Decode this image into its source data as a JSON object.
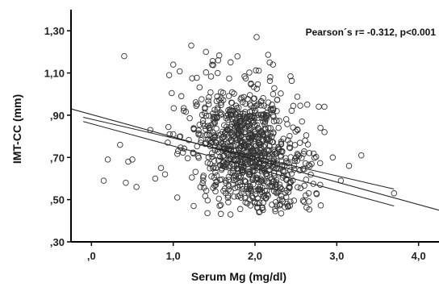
{
  "chart_data": {
    "type": "scatter",
    "title": "",
    "xlabel": "Serum Mg (mg/dl)",
    "ylabel": "IMT-CC (mm)",
    "annotation": "Pearson´s r= -0.312, p<0.001",
    "xlim": [
      -0.25,
      4.25
    ],
    "ylim": [
      0.3,
      1.4
    ],
    "x_ticks": [
      0.0,
      1.0,
      2.0,
      3.0,
      4.0
    ],
    "x_tick_labels": [
      ",0",
      "1,0",
      "2,0",
      "3,0",
      "4,0"
    ],
    "y_ticks": [
      0.3,
      0.5,
      0.7,
      0.9,
      1.1,
      1.3
    ],
    "y_tick_labels": [
      ",30",
      ",50",
      ",70",
      ",90",
      "1,10",
      "1,30"
    ],
    "grid": false,
    "marker": "open-circle",
    "colors": {
      "points": "#333333",
      "lines": "#222222",
      "axis": "#000000"
    },
    "regression_line": {
      "x": [
        -0.25,
        4.25
      ],
      "y": [
        0.93,
        0.45
      ]
    },
    "confidence_upper": {
      "x": [
        -0.1,
        3.7
      ],
      "y": [
        0.89,
        0.55
      ]
    },
    "confidence_lower": {
      "x": [
        -0.1,
        3.7
      ],
      "y": [
        0.87,
        0.47
      ]
    },
    "outlier_points": [
      {
        "x": 0.4,
        "y": 1.18
      },
      {
        "x": 0.35,
        "y": 0.76
      },
      {
        "x": 0.2,
        "y": 0.69
      },
      {
        "x": 0.15,
        "y": 0.59
      },
      {
        "x": 0.45,
        "y": 0.68
      },
      {
        "x": 0.5,
        "y": 0.69
      },
      {
        "x": 0.55,
        "y": 0.56
      },
      {
        "x": 0.42,
        "y": 0.58
      },
      {
        "x": 0.72,
        "y": 0.83
      },
      {
        "x": 0.78,
        "y": 0.6
      },
      {
        "x": 0.85,
        "y": 0.65
      },
      {
        "x": 0.9,
        "y": 0.62
      },
      {
        "x": 3.3,
        "y": 0.71
      },
      {
        "x": 3.15,
        "y": 0.66
      },
      {
        "x": 3.7,
        "y": 0.53
      },
      {
        "x": 2.95,
        "y": 0.7
      },
      {
        "x": 2.8,
        "y": 0.84
      },
      {
        "x": 2.78,
        "y": 0.94
      },
      {
        "x": 2.02,
        "y": 1.27
      },
      {
        "x": 2.85,
        "y": 0.82
      },
      {
        "x": 1.22,
        "y": 1.23
      },
      {
        "x": 1.4,
        "y": 1.2
      },
      {
        "x": 1.55,
        "y": 1.16
      },
      {
        "x": 2.18,
        "y": 1.15
      },
      {
        "x": 2.22,
        "y": 1.14
      },
      {
        "x": 1.0,
        "y": 1.14
      },
      {
        "x": 0.95,
        "y": 1.09
      },
      {
        "x": 2.6,
        "y": 0.49
      },
      {
        "x": 2.4,
        "y": 0.47
      },
      {
        "x": 1.7,
        "y": 0.43
      },
      {
        "x": 2.05,
        "y": 0.44
      },
      {
        "x": 2.3,
        "y": 0.5
      },
      {
        "x": 1.05,
        "y": 0.51
      },
      {
        "x": 1.25,
        "y": 0.47
      },
      {
        "x": 2.75,
        "y": 0.53
      },
      {
        "x": 3.05,
        "y": 0.59
      }
    ],
    "cloud": {
      "n": 900,
      "x_mean": 1.95,
      "x_sd": 0.36,
      "y_mean": 0.72,
      "y_sd": 0.15,
      "slope": -0.11,
      "x_range": [
        0.9,
        2.85
      ],
      "y_range": [
        0.43,
        1.22
      ]
    }
  }
}
